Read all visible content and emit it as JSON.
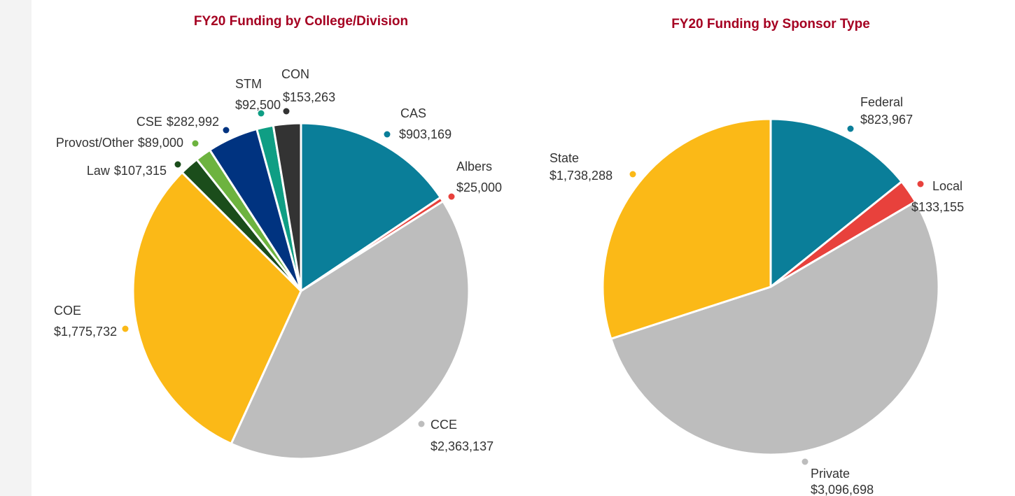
{
  "chart_data": [
    {
      "type": "pie",
      "title": "FY20 Funding by College/Division",
      "categories": [
        "CAS",
        "Albers",
        "CCE",
        "COE",
        "Law",
        "Provost/Other",
        "CSE",
        "STM",
        "CON"
      ],
      "values": [
        903169,
        25000,
        2363137,
        1775732,
        107315,
        89000,
        282992,
        92500,
        153263
      ],
      "value_labels": [
        "$903,169",
        "$25,000",
        "$2,363,137",
        "$1,775,732",
        "$107,315",
        "$89,000",
        "$282,992",
        "$92,500",
        "$153,263"
      ],
      "colors": [
        "#0a7e99",
        "#e8413c",
        "#bdbdbd",
        "#fbb917",
        "#1b4d1b",
        "#6db33f",
        "#003380",
        "#0f9e84",
        "#333333"
      ]
    },
    {
      "type": "pie",
      "title": "FY20 Funding by Sponsor Type",
      "categories": [
        "Federal",
        "Local",
        "Private",
        "State"
      ],
      "values": [
        823967,
        133155,
        3096698,
        1738288
      ],
      "value_labels": [
        "$823,967",
        "$133,155",
        "$3,096,698",
        "$1,738,288"
      ],
      "colors": [
        "#0a7e99",
        "#e8413c",
        "#bdbdbd",
        "#fbb917"
      ]
    }
  ]
}
